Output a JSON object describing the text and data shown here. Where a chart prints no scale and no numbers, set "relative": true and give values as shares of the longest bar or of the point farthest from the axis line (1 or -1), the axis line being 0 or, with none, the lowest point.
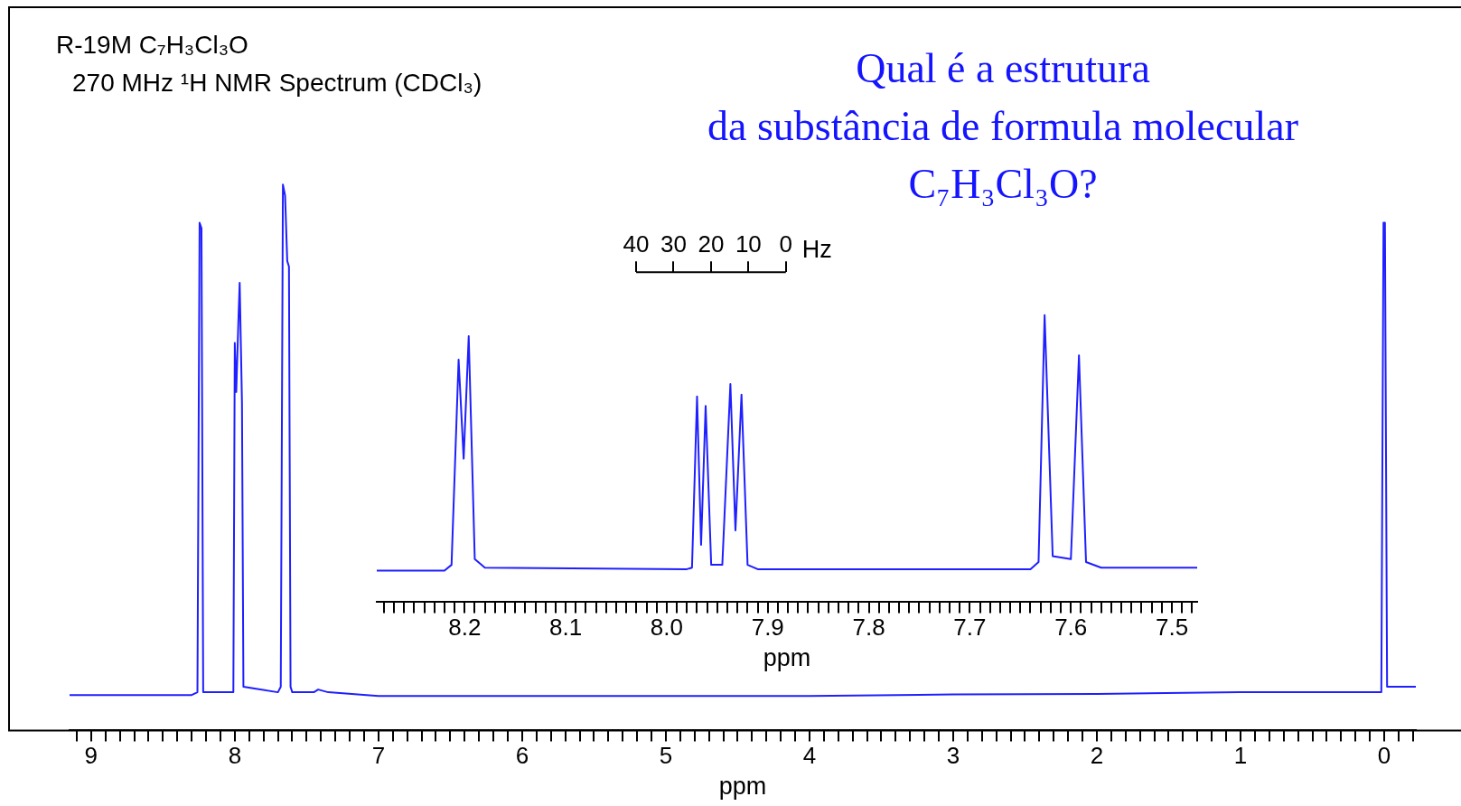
{
  "chart_data": [
    {
      "type": "line",
      "title": "R-19M C₇H₃Cl₃O",
      "subtitle": "270 MHz ¹H NMR Spectrum (CDCl₃)",
      "annotations": [
        "Qual é a estrutura\nda substância de formula molecular\nC₇H₃Cl₃O?"
      ],
      "relative": true,
      "color": "#1f1fff",
      "xlabel": "ppm",
      "marker": "none",
      "x": [
        9.15,
        8.6,
        8.3,
        8.26,
        8.245,
        8.232,
        8.22,
        8.05,
        8.01,
        8.0,
        7.99,
        7.975,
        7.966,
        7.95,
        7.94,
        7.7,
        7.68,
        7.665,
        7.65,
        7.635,
        7.623,
        7.612,
        7.6,
        7.45,
        7.42,
        7.35,
        7.0,
        5,
        4,
        3,
        2,
        1,
        0.3,
        0.02,
        0.005,
        -0.005,
        -0.02,
        -0.22
      ],
      "values": [
        0.065,
        0.065,
        0.065,
        0.07,
        0.93,
        0.92,
        0.07,
        0.07,
        0.07,
        0.71,
        0.62,
        0.75,
        0.82,
        0.6,
        0.08,
        0.07,
        0.08,
        1.0,
        0.98,
        0.86,
        0.85,
        0.08,
        0.07,
        0.07,
        0.075,
        0.07,
        0.063,
        0.063,
        0.063,
        0.066,
        0.067,
        0.07,
        0.07,
        0.07,
        0.93,
        0.93,
        0.08,
        0.08
      ],
      "xlim": [
        9.15,
        -0.22
      ],
      "xticks": [
        {
          "value": 9.1,
          "label": null
        },
        9,
        {
          "value": 8.9,
          "label": null
        },
        {
          "value": 8.8,
          "label": null
        },
        {
          "value": 8.7,
          "label": null
        },
        {
          "value": 8.6,
          "label": null
        },
        {
          "value": 8.5,
          "label": null
        },
        {
          "value": 8.4,
          "label": null
        },
        {
          "value": 8.3,
          "label": null
        },
        {
          "value": 8.2,
          "label": null
        },
        {
          "value": 8.1,
          "label": null
        },
        8,
        {
          "value": 7.9,
          "label": null
        },
        {
          "value": 7.8,
          "label": null
        },
        {
          "value": 7.7,
          "label": null
        },
        {
          "value": 7.6,
          "label": null
        },
        {
          "value": 7.5,
          "label": null
        },
        {
          "value": 7.4,
          "label": null
        },
        {
          "value": 7.3,
          "label": null
        },
        {
          "value": 7.2,
          "label": null
        },
        {
          "value": 7.1,
          "label": null
        },
        7,
        {
          "value": 6.9,
          "label": null
        },
        {
          "value": 6.8,
          "label": null
        },
        {
          "value": 6.7,
          "label": null
        },
        {
          "value": 6.6,
          "label": null
        },
        {
          "value": 6.5,
          "label": null
        },
        {
          "value": 6.4,
          "label": null
        },
        {
          "value": 6.3,
          "label": null
        },
        {
          "value": 6.2,
          "label": null
        },
        {
          "value": 6.1,
          "label": null
        },
        6,
        {
          "value": 5.9,
          "label": null
        },
        {
          "value": 5.8,
          "label": null
        },
        {
          "value": 5.7,
          "label": null
        },
        {
          "value": 5.6,
          "label": null
        },
        {
          "value": 5.5,
          "label": null
        },
        {
          "value": 5.4,
          "label": null
        },
        {
          "value": 5.3,
          "label": null
        },
        {
          "value": 5.2,
          "label": null
        },
        {
          "value": 5.1,
          "label": null
        },
        5,
        {
          "value": 4.9,
          "label": null
        },
        {
          "value": 4.8,
          "label": null
        },
        {
          "value": 4.7,
          "label": null
        },
        {
          "value": 4.6,
          "label": null
        },
        {
          "value": 4.5,
          "label": null
        },
        {
          "value": 4.4,
          "label": null
        },
        {
          "value": 4.3,
          "label": null
        },
        {
          "value": 4.2,
          "label": null
        },
        {
          "value": 4.1,
          "label": null
        },
        4,
        {
          "value": 3.9,
          "label": null
        },
        {
          "value": 3.8,
          "label": null
        },
        {
          "value": 3.7,
          "label": null
        },
        {
          "value": 3.6,
          "label": null
        },
        {
          "value": 3.5,
          "label": null
        },
        {
          "value": 3.4,
          "label": null
        },
        {
          "value": 3.3,
          "label": null
        },
        {
          "value": 3.2,
          "label": null
        },
        {
          "value": 3.1,
          "label": null
        },
        3,
        {
          "value": 2.9,
          "label": null
        },
        {
          "value": 2.8,
          "label": null
        },
        {
          "value": 2.7,
          "label": null
        },
        {
          "value": 2.6,
          "label": null
        },
        {
          "value": 2.5,
          "label": null
        },
        {
          "value": 2.4,
          "label": null
        },
        {
          "value": 2.3,
          "label": null
        },
        {
          "value": 2.2,
          "label": null
        },
        {
          "value": 2.1,
          "label": null
        },
        2,
        {
          "value": 1.9,
          "label": null
        },
        {
          "value": 1.8,
          "label": null
        },
        {
          "value": 1.7,
          "label": null
        },
        {
          "value": 1.6,
          "label": null
        },
        {
          "value": 1.5,
          "label": null
        },
        {
          "value": 1.4,
          "label": null
        },
        {
          "value": 1.3,
          "label": null
        },
        {
          "value": 1.2,
          "label": null
        },
        {
          "value": 1.1,
          "label": null
        },
        1,
        {
          "value": 0.9,
          "label": null
        },
        {
          "value": 0.8,
          "label": null
        },
        {
          "value": 0.7,
          "label": null
        },
        {
          "value": 0.6,
          "label": null
        },
        {
          "value": 0.5,
          "label": null
        },
        {
          "value": 0.4,
          "label": null
        },
        {
          "value": 0.3,
          "label": null
        },
        {
          "value": 0.2,
          "label": null
        },
        {
          "value": 0.1,
          "label": null
        },
        0,
        {
          "value": -0.1,
          "label": null
        },
        {
          "value": -0.2,
          "label": null
        }
      ]
    },
    {
      "type": "line",
      "relative": true,
      "color": "#1f1fff",
      "xlabel": "ppm",
      "marker": "none",
      "x": [
        8.287,
        8.22,
        8.213,
        8.206,
        8.201,
        8.196,
        8.19,
        8.18,
        7.98,
        7.975,
        7.97,
        7.966,
        7.9615,
        7.956,
        7.945,
        7.937,
        7.932,
        7.926,
        7.92,
        7.91,
        7.64,
        7.632,
        7.626,
        7.618,
        7.6,
        7.592,
        7.585,
        7.57,
        7.475
      ],
      "values": [
        0.11,
        0.11,
        0.13,
        0.845,
        0.5,
        0.927,
        0.15,
        0.12,
        0.115,
        0.12,
        0.717,
        0.2,
        0.684,
        0.13,
        0.13,
        0.76,
        0.25,
        0.723,
        0.13,
        0.115,
        0.115,
        0.14,
        1.0,
        0.16,
        0.15,
        0.86,
        0.14,
        0.12,
        0.12
      ],
      "xlim": [
        8.287,
        7.475
      ],
      "xticks": [
        {
          "value": 8.28,
          "label": null
        },
        {
          "value": 8.27,
          "label": null
        },
        {
          "value": 8.26,
          "label": null
        },
        {
          "value": 8.25,
          "label": null
        },
        {
          "value": 8.24,
          "label": null
        },
        {
          "value": 8.23,
          "label": null
        },
        {
          "value": 8.22,
          "label": null
        },
        {
          "value": 8.21,
          "label": null
        },
        8.2,
        {
          "value": 8.19,
          "label": null
        },
        {
          "value": 8.18,
          "label": null
        },
        {
          "value": 8.17,
          "label": null
        },
        {
          "value": 8.16,
          "label": null
        },
        {
          "value": 8.15,
          "label": null
        },
        {
          "value": 8.14,
          "label": null
        },
        {
          "value": 8.13,
          "label": null
        },
        {
          "value": 8.12,
          "label": null
        },
        {
          "value": 8.11,
          "label": null
        },
        8.1,
        {
          "value": 8.09,
          "label": null
        },
        {
          "value": 8.08,
          "label": null
        },
        {
          "value": 8.07,
          "label": null
        },
        {
          "value": 8.06,
          "label": null
        },
        {
          "value": 8.05,
          "label": null
        },
        {
          "value": 8.04,
          "label": null
        },
        {
          "value": 8.03,
          "label": null
        },
        {
          "value": 8.02,
          "label": null
        },
        {
          "value": 8.01,
          "label": null
        },
        {
          "value": 8,
          "label": "8.0"
        },
        {
          "value": 7.99,
          "label": null
        },
        {
          "value": 7.98,
          "label": null
        },
        {
          "value": 7.97,
          "label": null
        },
        {
          "value": 7.96,
          "label": null
        },
        {
          "value": 7.95,
          "label": null
        },
        {
          "value": 7.94,
          "label": null
        },
        {
          "value": 7.93,
          "label": null
        },
        {
          "value": 7.92,
          "label": null
        },
        {
          "value": 7.91,
          "label": null
        },
        7.9,
        {
          "value": 7.89,
          "label": null
        },
        {
          "value": 7.88,
          "label": null
        },
        {
          "value": 7.87,
          "label": null
        },
        {
          "value": 7.86,
          "label": null
        },
        {
          "value": 7.85,
          "label": null
        },
        {
          "value": 7.84,
          "label": null
        },
        {
          "value": 7.83,
          "label": null
        },
        {
          "value": 7.82,
          "label": null
        },
        {
          "value": 7.81,
          "label": null
        },
        7.8,
        {
          "value": 7.79,
          "label": null
        },
        {
          "value": 7.78,
          "label": null
        },
        {
          "value": 7.77,
          "label": null
        },
        {
          "value": 7.76,
          "label": null
        },
        {
          "value": 7.75,
          "label": null
        },
        {
          "value": 7.74,
          "label": null
        },
        {
          "value": 7.73,
          "label": null
        },
        {
          "value": 7.72,
          "label": null
        },
        {
          "value": 7.71,
          "label": null
        },
        7.7,
        {
          "value": 7.69,
          "label": null
        },
        {
          "value": 7.68,
          "label": null
        },
        {
          "value": 7.67,
          "label": null
        },
        {
          "value": 7.66,
          "label": null
        },
        {
          "value": 7.65,
          "label": null
        },
        {
          "value": 7.64,
          "label": null
        },
        {
          "value": 7.63,
          "label": null
        },
        {
          "value": 7.62,
          "label": null
        },
        {
          "value": 7.61,
          "label": null
        },
        7.6,
        {
          "value": 7.59,
          "label": null
        },
        {
          "value": 7.58,
          "label": null
        },
        {
          "value": 7.57,
          "label": null
        },
        {
          "value": 7.56,
          "label": null
        },
        {
          "value": 7.55,
          "label": null
        },
        {
          "value": 7.54,
          "label": null
        },
        {
          "value": 7.53,
          "label": null
        },
        {
          "value": 7.52,
          "label": null
        },
        {
          "value": 7.51,
          "label": null
        },
        7.5,
        {
          "value": 7.49,
          "label": null
        },
        {
          "value": 7.48,
          "label": null
        }
      ],
      "x2label": "Hz",
      "x2lim": [
        109.3,
        -109.9
      ],
      "x2ticks": [
        40,
        30,
        20,
        10,
        0
      ]
    }
  ]
}
